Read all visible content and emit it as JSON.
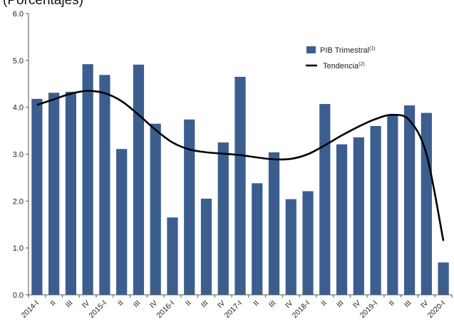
{
  "subtitle": "(Porcentajes)",
  "chart_data": {
    "type": "bar",
    "categories": [
      "2014-I",
      "II",
      "III",
      "IV",
      "2015-I",
      "II",
      "III",
      "IV",
      "2016-I",
      "II",
      "III",
      "IV",
      "2017-I",
      "II",
      "III",
      "IV",
      "2018-I",
      "II",
      "III",
      "IV",
      "2019-I",
      "II",
      "III",
      "IV",
      "2020-I"
    ],
    "ylim": [
      0,
      6
    ],
    "yticks": [
      "0.0",
      "1.0",
      "2.0",
      "3.0",
      "4.0",
      "5.0",
      "6.0"
    ],
    "series": [
      {
        "name": "PIB Trimestral",
        "name_sup": "(1)",
        "type": "bar",
        "color": "#3b5e8f",
        "values": [
          4.18,
          4.31,
          4.33,
          4.92,
          4.69,
          3.11,
          4.91,
          3.65,
          1.65,
          3.74,
          2.05,
          3.25,
          4.65,
          2.38,
          3.04,
          2.04,
          2.21,
          4.07,
          3.21,
          3.36,
          3.6,
          3.84,
          4.04,
          3.88,
          0.69
        ]
      },
      {
        "name": "Tendencia",
        "name_sup": "(2)",
        "type": "line",
        "color": "#000000",
        "values": [
          4.05,
          4.17,
          4.29,
          4.35,
          4.3,
          4.13,
          3.84,
          3.52,
          3.25,
          3.1,
          3.04,
          3.01,
          2.98,
          2.93,
          2.89,
          2.9,
          3.0,
          3.19,
          3.4,
          3.59,
          3.75,
          3.84,
          3.72,
          3.0,
          1.15
        ]
      }
    ],
    "grid": false,
    "legend_position": "top-right"
  }
}
